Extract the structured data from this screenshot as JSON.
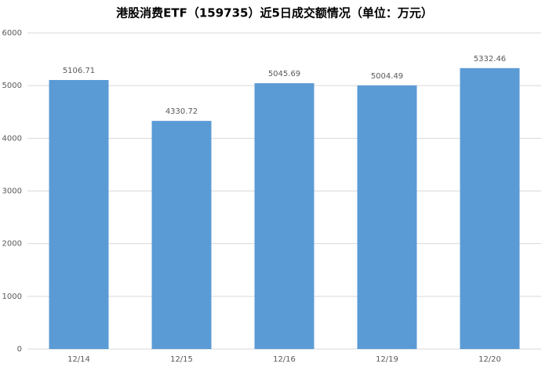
{
  "chart_data": {
    "type": "bar",
    "title": "港股消费ETF（159735）近5日成交额情况（单位：万元）",
    "categories": [
      "12/14",
      "12/15",
      "12/16",
      "12/19",
      "12/20"
    ],
    "values": [
      5106.71,
      4330.72,
      5045.69,
      5004.49,
      5332.46
    ],
    "color": "#5b9bd5",
    "ylim": [
      0,
      6000
    ],
    "yticks": [
      0,
      1000,
      2000,
      3000,
      4000,
      5000,
      6000
    ],
    "grid": true
  }
}
